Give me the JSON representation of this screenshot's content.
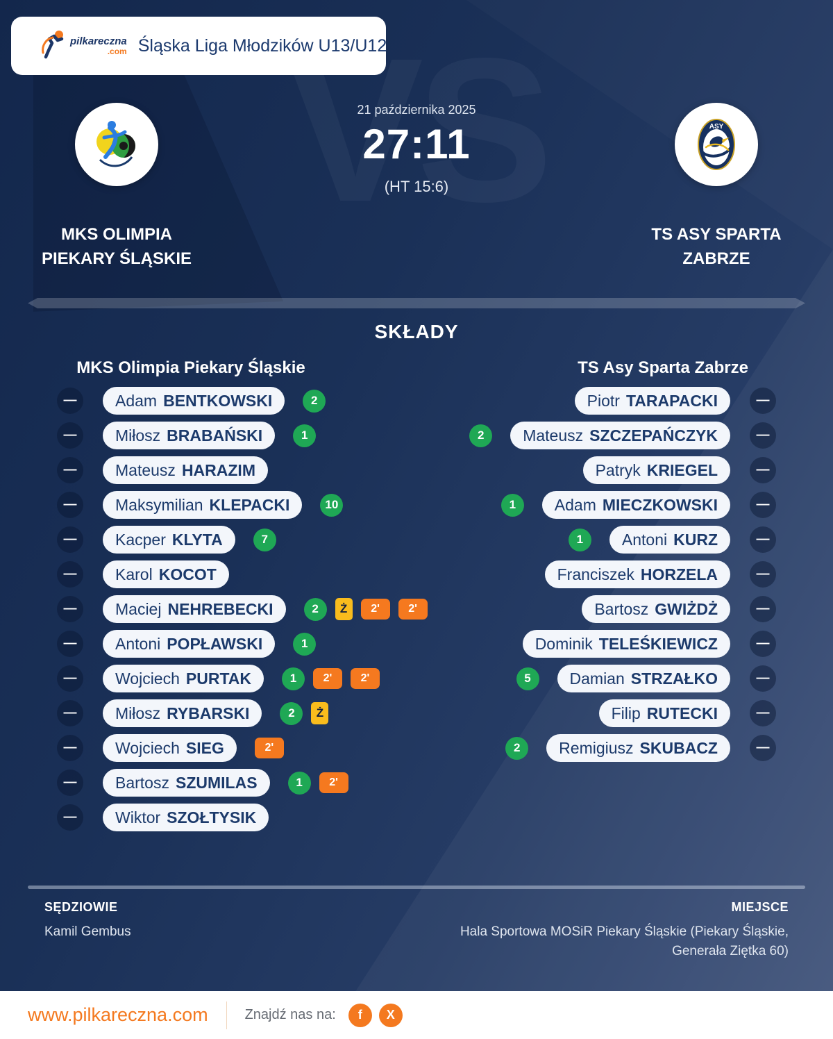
{
  "header": {
    "logo_main": "pilkareczna",
    "logo_suffix": ".com",
    "league_title": "Śląska Liga Młodzików U13/U12"
  },
  "match": {
    "date": "21 października 2025",
    "score": "27:11",
    "halftime": "(HT 15:6)",
    "vs_watermark": "VS",
    "home": {
      "name_line1": "MKS OLIMPIA",
      "name_line2": "PIEKARY ŚLĄSKIE"
    },
    "away": {
      "name_line1": "TS ASY SPARTA",
      "name_line2": "ZABRZE"
    }
  },
  "lineups": {
    "section_title": "SKŁADY",
    "home_team_title": "MKS Olimpia Piekary Śląskie",
    "away_team_title": "TS Asy Sparta Zabrze",
    "number_placeholder": "—",
    "yellow_card_label": "Ż",
    "two_min_label": "2'",
    "home_players": [
      {
        "first": "Adam",
        "last": "BENTKOWSKI",
        "goals": "2",
        "cards": []
      },
      {
        "first": "Miłosz",
        "last": "BRABAŃSKI",
        "goals": "1",
        "cards": []
      },
      {
        "first": "Mateusz",
        "last": "HARAZIM",
        "goals": null,
        "cards": []
      },
      {
        "first": "Maksymilian",
        "last": "KLEPACKI",
        "goals": "10",
        "cards": []
      },
      {
        "first": "Kacper",
        "last": "KLYTA",
        "goals": "7",
        "cards": []
      },
      {
        "first": "Karol",
        "last": "KOCOT",
        "goals": null,
        "cards": []
      },
      {
        "first": "Maciej",
        "last": "NEHREBECKI",
        "goals": "2",
        "cards": [
          "yellow",
          "2min",
          "2min"
        ]
      },
      {
        "first": "Antoni",
        "last": "POPŁAWSKI",
        "goals": "1",
        "cards": []
      },
      {
        "first": "Wojciech",
        "last": "PURTAK",
        "goals": "1",
        "cards": [
          "2min",
          "2min"
        ]
      },
      {
        "first": "Miłosz",
        "last": "RYBARSKI",
        "goals": "2",
        "cards": [
          "yellow"
        ]
      },
      {
        "first": "Wojciech",
        "last": "SIEG",
        "goals": null,
        "cards": [
          "2min"
        ]
      },
      {
        "first": "Bartosz",
        "last": "SZUMILAS",
        "goals": "1",
        "cards": [
          "2min"
        ]
      },
      {
        "first": "Wiktor",
        "last": "SZOŁTYSIK",
        "goals": null,
        "cards": []
      }
    ],
    "away_players": [
      {
        "first": "Piotr",
        "last": "TARAPACKI",
        "goals": null,
        "cards": []
      },
      {
        "first": "Mateusz",
        "last": "SZCZEPAŃCZYK",
        "goals": "2",
        "cards": []
      },
      {
        "first": "Patryk",
        "last": "KRIEGEL",
        "goals": null,
        "cards": []
      },
      {
        "first": "Adam",
        "last": "MIECZKOWSKI",
        "goals": "1",
        "cards": []
      },
      {
        "first": "Antoni",
        "last": "KURZ",
        "goals": "1",
        "cards": []
      },
      {
        "first": "Franciszek",
        "last": "HORZELA",
        "goals": null,
        "cards": []
      },
      {
        "first": "Bartosz",
        "last": "GWIŻDŻ",
        "goals": null,
        "cards": []
      },
      {
        "first": "Dominik",
        "last": "TELEŚKIEWICZ",
        "goals": null,
        "cards": []
      },
      {
        "first": "Damian",
        "last": "STRZAŁKO",
        "goals": "5",
        "cards": []
      },
      {
        "first": "Filip",
        "last": "RUTECKI",
        "goals": null,
        "cards": []
      },
      {
        "first": "Remigiusz",
        "last": "SKUBACZ",
        "goals": "2",
        "cards": []
      }
    ]
  },
  "officials": {
    "referees_label": "SĘDZIOWIE",
    "referees": "Kamil Gembus",
    "venue_label": "MIEJSCE",
    "venue_line1": "Hala Sportowa MOSiR Piekary Śląskie (Piekary Śląskie,",
    "venue_line2": "Generała Ziętka 60)"
  },
  "footer": {
    "website": "www.pilkareczna.com",
    "find_us": "Znajdź nas na:",
    "facebook_glyph": "f",
    "x_glyph": "X"
  },
  "colors": {
    "background_navy": "#16294e",
    "accent_orange": "#f4791f",
    "goal_green": "#1fa855",
    "yellow_card": "#f9bc1d",
    "pill_white": "#f3f6fb",
    "text_navy": "#1c3a6b"
  }
}
